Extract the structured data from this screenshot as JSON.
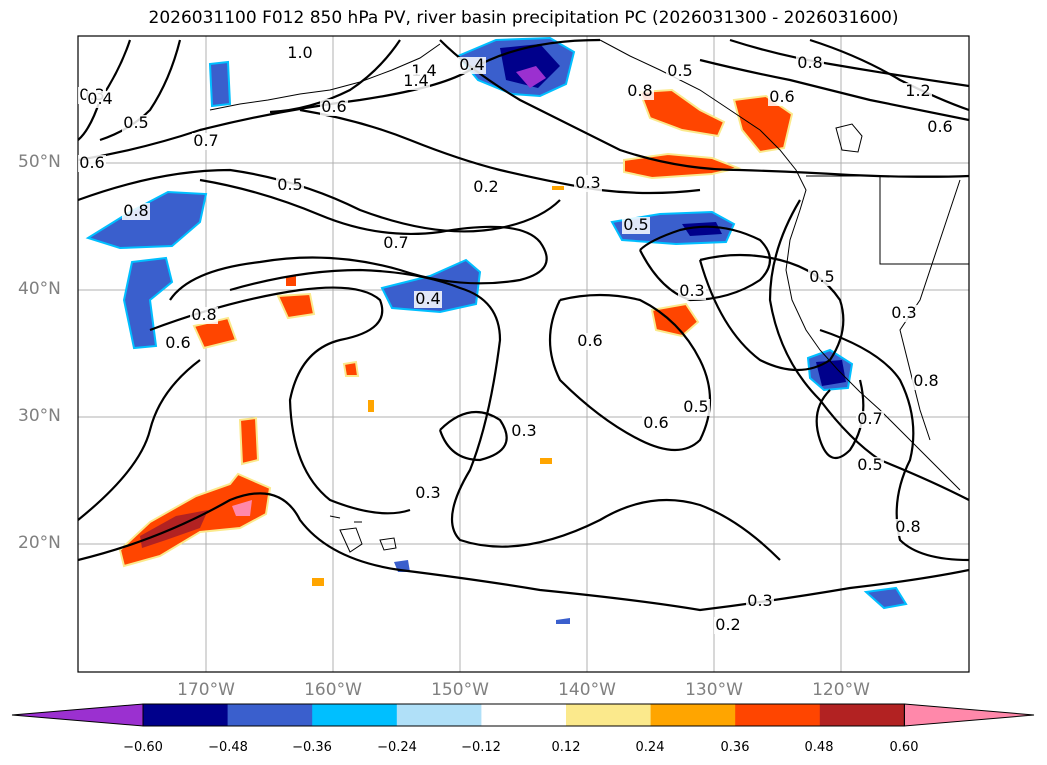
{
  "title": "2026031100 F012 850 hPa PV, river basin precipitation PC (2026031300 - 2026031600)",
  "lat_labels": [
    "50°N",
    "40°N",
    "30°N",
    "20°N"
  ],
  "lon_labels": [
    "170°W",
    "160°W",
    "150°W",
    "140°W",
    "130°W",
    "120°W"
  ],
  "colorbar": {
    "ticks": [
      "−0.60",
      "−0.48",
      "−0.36",
      "−0.24",
      "−0.12",
      "0.12",
      "0.24",
      "0.36",
      "0.48",
      "0.60"
    ],
    "colors": [
      "#9b30d0",
      "#00008b",
      "#3a5fcd",
      "#00bfff",
      "#b0e0f8",
      "#ffffff",
      "#fbe98c",
      "#ffa500",
      "#ff4500",
      "#b22222",
      "#ff88aa"
    ]
  },
  "contour_labels": [
    {
      "text": "0.3"
    },
    {
      "text": "0.4"
    },
    {
      "text": "0.5"
    },
    {
      "text": "0.6"
    },
    {
      "text": "0.7"
    },
    {
      "text": "0.8"
    },
    {
      "text": "1.0"
    },
    {
      "text": "1.4"
    },
    {
      "text": "0.8"
    },
    {
      "text": "1.2"
    },
    {
      "text": "0.5"
    },
    {
      "text": "0.8"
    },
    {
      "text": "0.6"
    },
    {
      "text": "0.2"
    },
    {
      "text": "0.3"
    },
    {
      "text": "0.5"
    },
    {
      "text": "0.7"
    },
    {
      "text": "0.4"
    },
    {
      "text": "0.8"
    },
    {
      "text": "0.6"
    },
    {
      "text": "0.3"
    },
    {
      "text": "0.6"
    },
    {
      "text": "0.3"
    },
    {
      "text": "0.5"
    },
    {
      "text": "0.6"
    },
    {
      "text": "0.5"
    },
    {
      "text": "0.3"
    },
    {
      "text": "0.8"
    },
    {
      "text": "0.7"
    },
    {
      "text": "0.5"
    },
    {
      "text": "0.5"
    },
    {
      "text": "0.3"
    },
    {
      "text": "0.3"
    },
    {
      "text": "0.2"
    },
    {
      "text": "0.6"
    },
    {
      "text": "0.4"
    },
    {
      "text": "0.6"
    },
    {
      "text": "0.8"
    },
    {
      "text": "1.4"
    }
  ]
}
